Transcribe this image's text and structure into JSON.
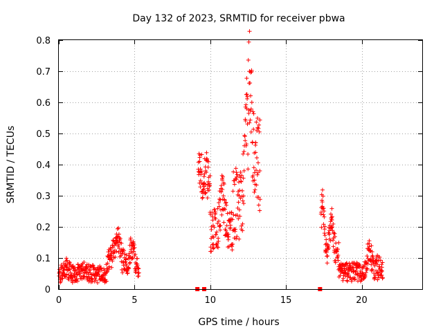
{
  "chart_data": {
    "type": "scatter",
    "title": "Day 132 of 2023, SRMTID for receiver pbwa",
    "xlabel": "GPS time / hours",
    "ylabel": "SRMTID / TECUs",
    "xlim": [
      0,
      24
    ],
    "ylim": [
      0,
      0.8
    ],
    "x_ticks": [
      0,
      5,
      10,
      15,
      20
    ],
    "y_ticks": [
      0,
      0.1,
      0.2,
      0.3,
      0.4,
      0.5,
      0.6,
      0.7,
      0.8
    ],
    "x_tick_labels": [
      "0",
      "5",
      "10",
      "15",
      "20"
    ],
    "y_tick_labels": [
      "0",
      "0.1",
      "0.2",
      "0.3",
      "0.4",
      "0.5",
      "0.6",
      "0.7",
      "0.8"
    ],
    "grid": true,
    "marker": "+",
    "color": "#ff0000",
    "series": [
      {
        "name": "SRMTID",
        "segments": [
          {
            "x_start": 0.0,
            "x_end": 3.2,
            "y_center": 0.05,
            "spread": 0.03,
            "bumps": [
              {
                "x": 0.5,
                "y": 0.07
              },
              {
                "x": 1.6,
                "y": 0.06
              },
              {
                "x": 2.5,
                "y": 0.05
              }
            ]
          },
          {
            "x_start": 3.2,
            "x_end": 4.4,
            "y_center": 0.09,
            "spread": 0.04,
            "bumps": [
              {
                "x": 3.9,
                "y": 0.17
              },
              {
                "x": 3.6,
                "y": 0.12
              }
            ]
          },
          {
            "x_start": 4.4,
            "x_end": 5.3,
            "y_center": 0.08,
            "spread": 0.04,
            "bumps": [
              {
                "x": 4.8,
                "y": 0.14
              }
            ]
          },
          {
            "x_start": 9.2,
            "x_end": 10.0,
            "y_center": 0.3,
            "spread": 0.08,
            "bumps": [
              {
                "x": 9.3,
                "y": 0.41
              },
              {
                "x": 9.7,
                "y": 0.38
              }
            ]
          },
          {
            "x_start": 10.0,
            "x_end": 11.5,
            "y_center": 0.19,
            "spread": 0.07,
            "bumps": [
              {
                "x": 10.8,
                "y": 0.32
              }
            ]
          },
          {
            "x_start": 11.5,
            "x_end": 12.5,
            "y_center": 0.28,
            "spread": 0.12,
            "bumps": [
              {
                "x": 12.4,
                "y": 0.58
              }
            ]
          },
          {
            "x_start": 12.5,
            "x_end": 13.3,
            "y_center": 0.38,
            "spread": 0.17,
            "bumps": [
              {
                "x": 12.6,
                "y": 0.7
              },
              {
                "x": 13.0,
                "y": 0.47
              }
            ]
          },
          {
            "x_start": 17.3,
            "x_end": 18.5,
            "y_center": 0.1,
            "spread": 0.05,
            "bumps": [
              {
                "x": 17.4,
                "y": 0.28
              },
              {
                "x": 18.0,
                "y": 0.23
              }
            ]
          },
          {
            "x_start": 18.5,
            "x_end": 20.2,
            "y_center": 0.055,
            "spread": 0.03,
            "bumps": []
          },
          {
            "x_start": 20.2,
            "x_end": 21.4,
            "y_center": 0.07,
            "spread": 0.04,
            "bumps": [
              {
                "x": 20.5,
                "y": 0.13
              }
            ]
          }
        ],
        "gap_markers_x": [
          9.15,
          9.6,
          17.25
        ]
      }
    ]
  }
}
